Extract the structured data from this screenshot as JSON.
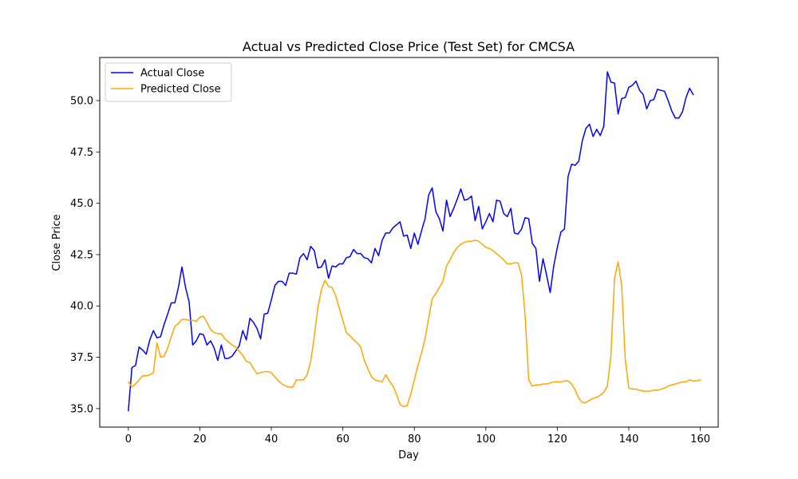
{
  "chart_data": {
    "type": "line",
    "title": "Actual vs Predicted Close Price (Test Set) for CMCSA",
    "xlabel": "Day",
    "ylabel": "Close Price",
    "xlim": [
      -8,
      165
    ],
    "ylim": [
      34.1,
      52.1
    ],
    "xticks": [
      0,
      20,
      40,
      60,
      80,
      100,
      120,
      140,
      160
    ],
    "yticks": [
      35.0,
      37.5,
      40.0,
      42.5,
      45.0,
      47.5,
      50.0
    ],
    "ytick_labels": [
      "35.0",
      "37.5",
      "40.0",
      "42.5",
      "45.0",
      "47.5",
      "50.0"
    ],
    "grid": false,
    "legend_position": "top-left",
    "series": [
      {
        "name": "Actual Close",
        "color": "#0000ff",
        "values": [
          34.9,
          37.0,
          37.1,
          38.0,
          37.85,
          37.65,
          38.35,
          38.8,
          38.45,
          38.5,
          39.1,
          39.6,
          40.15,
          40.15,
          40.9,
          41.9,
          40.9,
          40.2,
          38.1,
          38.3,
          38.65,
          38.6,
          38.1,
          38.3,
          37.95,
          37.35,
          38.1,
          37.45,
          37.45,
          37.55,
          37.8,
          38.05,
          38.8,
          38.35,
          39.4,
          39.2,
          38.9,
          38.4,
          39.6,
          39.65,
          40.3,
          41.0,
          41.2,
          41.2,
          41.0,
          41.6,
          41.6,
          41.55,
          42.35,
          42.55,
          42.25,
          42.9,
          42.7,
          41.85,
          41.9,
          42.25,
          41.35,
          41.95,
          41.9,
          42.05,
          42.05,
          42.35,
          42.4,
          42.75,
          42.55,
          42.55,
          42.35,
          42.3,
          42.1,
          42.8,
          42.45,
          43.2,
          43.55,
          43.55,
          43.8,
          43.95,
          44.1,
          43.4,
          43.45,
          42.8,
          43.55,
          43.0,
          43.65,
          44.25,
          45.4,
          45.75,
          44.6,
          44.25,
          43.65,
          45.15,
          44.35,
          44.75,
          45.2,
          45.7,
          45.15,
          45.2,
          45.35,
          44.15,
          44.85,
          43.75,
          44.1,
          44.5,
          44.1,
          45.15,
          45.1,
          44.5,
          44.35,
          44.75,
          43.55,
          43.5,
          43.75,
          44.3,
          44.25,
          43.05,
          42.8,
          41.2,
          42.3,
          41.5,
          40.65,
          41.95,
          42.85,
          43.6,
          43.75,
          46.3,
          46.9,
          46.85,
          47.05,
          48.05,
          48.65,
          48.85,
          48.25,
          48.6,
          48.3,
          48.75,
          51.4,
          50.9,
          50.85,
          49.35,
          50.1,
          50.15,
          50.65,
          50.75,
          50.95,
          50.5,
          50.3,
          49.6,
          50.0,
          50.05,
          50.55,
          50.5,
          50.45,
          50.0,
          49.5,
          49.15,
          49.15,
          49.45,
          50.15,
          50.6,
          50.3
        ]
      },
      {
        "name": "Predicted Close",
        "color": "#ffa500",
        "values": [
          36.3,
          36.05,
          36.2,
          36.4,
          36.6,
          36.6,
          36.65,
          36.75,
          38.2,
          37.5,
          37.55,
          37.95,
          38.5,
          39.0,
          39.15,
          39.35,
          39.35,
          39.3,
          39.3,
          39.25,
          39.45,
          39.5,
          39.2,
          38.85,
          38.7,
          38.65,
          38.65,
          38.4,
          38.25,
          38.1,
          38.0,
          37.8,
          37.6,
          37.3,
          37.25,
          36.95,
          36.7,
          36.75,
          36.8,
          36.8,
          36.75,
          36.55,
          36.35,
          36.2,
          36.1,
          36.05,
          36.05,
          36.4,
          36.4,
          36.4,
          36.65,
          37.3,
          38.5,
          39.9,
          40.8,
          41.25,
          40.95,
          40.9,
          40.5,
          39.9,
          39.3,
          38.7,
          38.55,
          38.35,
          38.2,
          38.0,
          37.35,
          36.95,
          36.55,
          36.4,
          36.35,
          36.3,
          36.65,
          36.35,
          36.1,
          35.7,
          35.2,
          35.1,
          35.15,
          35.7,
          36.4,
          37.1,
          37.7,
          38.4,
          39.4,
          40.35,
          40.6,
          40.9,
          41.2,
          41.95,
          42.25,
          42.6,
          42.85,
          43.0,
          43.1,
          43.15,
          43.15,
          43.2,
          43.15,
          43.0,
          42.85,
          42.8,
          42.7,
          42.55,
          42.4,
          42.25,
          42.05,
          42.05,
          42.1,
          42.1,
          41.5,
          39.5,
          36.4,
          36.1,
          36.15,
          36.15,
          36.2,
          36.2,
          36.25,
          36.3,
          36.3,
          36.3,
          36.35,
          36.35,
          36.2,
          35.9,
          35.5,
          35.3,
          35.3,
          35.4,
          35.5,
          35.55,
          35.65,
          35.8,
          36.1,
          37.6,
          41.35,
          42.15,
          41.0,
          37.4,
          36.0,
          35.95,
          35.95,
          35.9,
          35.85,
          35.85,
          35.85,
          35.9,
          35.9,
          35.95,
          36.0,
          36.1,
          36.15,
          36.2,
          36.25,
          36.3,
          36.3,
          36.4,
          36.35,
          36.35,
          36.4
        ]
      }
    ]
  }
}
